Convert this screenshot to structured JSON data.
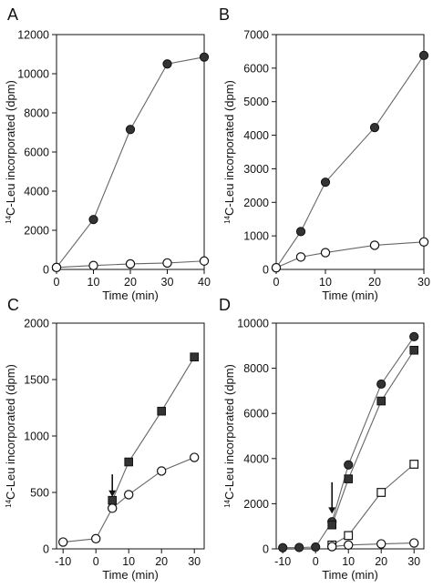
{
  "chart_data": [
    {
      "panel": "A",
      "type": "line",
      "xlabel": "Time (min)",
      "ylabel_main": "C-Leu incorporated (dpm)",
      "ylabel_sup": "14",
      "xlim": [
        0,
        40
      ],
      "ylim": [
        0,
        12000
      ],
      "xticks": [
        0,
        10,
        20,
        30,
        40
      ],
      "yticks": [
        0,
        2000,
        4000,
        6000,
        8000,
        10000,
        12000
      ],
      "series": [
        {
          "marker": "filled-circle",
          "x": [
            0,
            10,
            20,
            30,
            40
          ],
          "y": [
            100,
            2550,
            7150,
            10500,
            10850
          ]
        },
        {
          "marker": "open-circle",
          "x": [
            0,
            10,
            20,
            30,
            40
          ],
          "y": [
            100,
            200,
            280,
            330,
            430
          ]
        }
      ],
      "arrows": []
    },
    {
      "panel": "B",
      "type": "line",
      "xlabel": "Time (min)",
      "ylabel_main": "C-Leu incorporated (dpm)",
      "ylabel_sup": "14",
      "xlim": [
        0,
        30
      ],
      "ylim": [
        0,
        7000
      ],
      "xticks": [
        0,
        10,
        20,
        30
      ],
      "yticks": [
        0,
        1000,
        2000,
        3000,
        4000,
        5000,
        6000,
        7000
      ],
      "series": [
        {
          "marker": "filled-circle",
          "x": [
            0,
            5,
            10,
            20,
            30
          ],
          "y": [
            50,
            1130,
            2600,
            4230,
            6380
          ]
        },
        {
          "marker": "open-circle",
          "x": [
            0,
            5,
            10,
            20,
            30
          ],
          "y": [
            50,
            370,
            500,
            720,
            820
          ]
        }
      ],
      "arrows": []
    },
    {
      "panel": "C",
      "type": "line",
      "xlabel": "Time (min)",
      "ylabel_main": "C-Leu incorporated (dpm)",
      "ylabel_sup": "14",
      "xlim": [
        -12,
        33
      ],
      "ylim": [
        0,
        2000
      ],
      "xticks": [
        -10,
        0,
        10,
        20,
        30
      ],
      "yticks": [
        0,
        500,
        1000,
        1500,
        2000
      ],
      "series": [
        {
          "marker": "open-circle",
          "x": [
            -10,
            0,
            5,
            10,
            20,
            30
          ],
          "y": [
            60,
            90,
            360,
            480,
            690,
            810
          ]
        },
        {
          "marker": "filled-square",
          "x": [
            5,
            10,
            20,
            30
          ],
          "y": [
            430,
            770,
            1220,
            1700
          ]
        }
      ],
      "arrows": [
        {
          "x": 5,
          "y_from": 660,
          "y_to": 470
        }
      ]
    },
    {
      "panel": "D",
      "type": "line",
      "xlabel": "Time (min)",
      "ylabel_main": "C-Leu incorporated (dpm)",
      "ylabel_sup": "14",
      "xlim": [
        -12,
        33
      ],
      "ylim": [
        0,
        10000
      ],
      "xticks": [
        -10,
        0,
        10,
        20,
        30
      ],
      "yticks": [
        0,
        2000,
        4000,
        6000,
        8000,
        10000
      ],
      "series": [
        {
          "marker": "filled-circle",
          "x": [
            -10,
            -5,
            0,
            5,
            10,
            20,
            30
          ],
          "y": [
            50,
            60,
            80,
            1200,
            3720,
            7300,
            9400
          ]
        },
        {
          "marker": "filled-square",
          "x": [
            5,
            10,
            20,
            30
          ],
          "y": [
            1060,
            3100,
            6550,
            8800
          ]
        },
        {
          "marker": "open-square",
          "x": [
            5,
            10,
            20,
            30
          ],
          "y": [
            170,
            590,
            2500,
            3750
          ]
        },
        {
          "marker": "open-circle",
          "x": [
            5,
            10,
            20,
            30
          ],
          "y": [
            100,
            170,
            220,
            260
          ]
        }
      ],
      "arrows": [
        {
          "x": 5,
          "y_from": 2950,
          "y_to": 1600
        }
      ]
    }
  ]
}
